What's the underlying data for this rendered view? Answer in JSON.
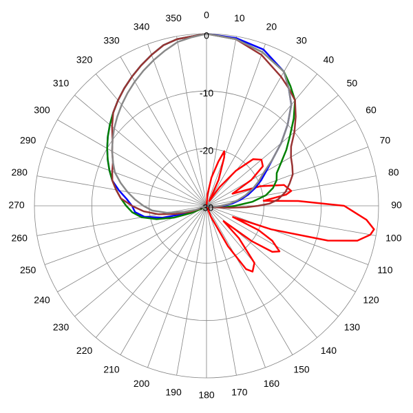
{
  "chart_data": {
    "type": "polar-line",
    "angle_direction": "clockwise",
    "angle_zero": "top",
    "angle_step_deg": 10,
    "angle_tick_labels": [
      "0",
      "10",
      "20",
      "30",
      "40",
      "50",
      "60",
      "70",
      "80",
      "90",
      "100",
      "110",
      "120",
      "130",
      "140",
      "150",
      "160",
      "170",
      "180",
      "190",
      "200",
      "210",
      "220",
      "230",
      "240",
      "250",
      "260",
      "270",
      "280",
      "290",
      "300",
      "310",
      "320",
      "330",
      "340",
      "350"
    ],
    "radial_range_db": [
      -30,
      0
    ],
    "radial_ticks": [
      0,
      -10,
      -20,
      -30
    ],
    "radial_tick_labels": [
      "0",
      "-10",
      "-20",
      "-30"
    ],
    "grid": true,
    "series": [
      {
        "color": "#ff0000",
        "points": [
          [
            0,
            -30
          ],
          [
            5,
            -28
          ],
          [
            10,
            -25
          ],
          [
            15,
            -22
          ],
          [
            18,
            -20
          ],
          [
            20,
            -21
          ],
          [
            25,
            -25
          ],
          [
            30,
            -29
          ],
          [
            35,
            -26
          ],
          [
            40,
            -22
          ],
          [
            45,
            -18.5
          ],
          [
            50,
            -17.5
          ],
          [
            55,
            -18
          ],
          [
            60,
            -21
          ],
          [
            65,
            -25
          ],
          [
            70,
            -20
          ],
          [
            75,
            -16
          ],
          [
            80,
            -15
          ],
          [
            82,
            -16
          ],
          [
            85,
            -20
          ],
          [
            87,
            -14
          ],
          [
            90,
            -6
          ],
          [
            95,
            -2
          ],
          [
            98,
            -0.5
          ],
          [
            100,
            -1
          ],
          [
            103,
            -3
          ],
          [
            106,
            -8
          ],
          [
            110,
            -18
          ],
          [
            113,
            -25
          ],
          [
            115,
            -20
          ],
          [
            118,
            -17
          ],
          [
            122,
            -15
          ],
          [
            125,
            -16
          ],
          [
            128,
            -20
          ],
          [
            132,
            -26
          ],
          [
            135,
            -22
          ],
          [
            140,
            -17
          ],
          [
            145,
            -16
          ],
          [
            148,
            -17
          ],
          [
            152,
            -22
          ],
          [
            158,
            -28
          ],
          [
            165,
            -30
          ],
          [
            180,
            -30
          ],
          [
            200,
            -30
          ],
          [
            220,
            -30
          ],
          [
            240,
            -30
          ],
          [
            260,
            -30
          ],
          [
            280,
            -30
          ],
          [
            300,
            -30
          ],
          [
            320,
            -30
          ],
          [
            340,
            -30
          ],
          [
            355,
            -30
          ],
          [
            360,
            -30
          ]
        ]
      },
      {
        "color": "#0000ff",
        "points": [
          [
            0,
            0
          ],
          [
            10,
            -0.3
          ],
          [
            20,
            -1
          ],
          [
            30,
            -3
          ],
          [
            35,
            -5
          ],
          [
            40,
            -7
          ],
          [
            45,
            -10
          ],
          [
            50,
            -13
          ],
          [
            55,
            -16
          ],
          [
            60,
            -18
          ],
          [
            65,
            -19.5
          ],
          [
            70,
            -21
          ],
          [
            75,
            -22.5
          ],
          [
            80,
            -24
          ],
          [
            85,
            -25.5
          ],
          [
            90,
            -27
          ],
          [
            95,
            -28
          ],
          [
            100,
            -29
          ],
          [
            110,
            -30
          ],
          [
            180,
            -30
          ],
          [
            240,
            -30
          ],
          [
            245,
            -29
          ],
          [
            250,
            -26
          ],
          [
            255,
            -22
          ],
          [
            260,
            -19
          ],
          [
            265,
            -17.5
          ],
          [
            270,
            -17
          ],
          [
            275,
            -16
          ],
          [
            280,
            -14.5
          ],
          [
            285,
            -13
          ],
          [
            290,
            -12
          ],
          [
            295,
            -11
          ],
          [
            300,
            -10
          ],
          [
            305,
            -9
          ],
          [
            310,
            -8
          ],
          [
            315,
            -7
          ],
          [
            320,
            -6
          ],
          [
            325,
            -5
          ],
          [
            330,
            -4
          ],
          [
            335,
            -3
          ],
          [
            340,
            -2
          ],
          [
            345,
            -1
          ],
          [
            350,
            -0.5
          ],
          [
            360,
            0
          ]
        ]
      },
      {
        "color": "#008000",
        "points": [
          [
            0,
            0
          ],
          [
            10,
            -0.5
          ],
          [
            20,
            -1.5
          ],
          [
            30,
            -3
          ],
          [
            35,
            -4.5
          ],
          [
            40,
            -6
          ],
          [
            45,
            -8.5
          ],
          [
            50,
            -11
          ],
          [
            55,
            -13
          ],
          [
            60,
            -15
          ],
          [
            65,
            -16.5
          ],
          [
            70,
            -17
          ],
          [
            75,
            -18
          ],
          [
            80,
            -19.5
          ],
          [
            85,
            -22
          ],
          [
            90,
            -25
          ],
          [
            95,
            -27
          ],
          [
            100,
            -28.5
          ],
          [
            105,
            -30
          ],
          [
            180,
            -30
          ],
          [
            235,
            -30
          ],
          [
            240,
            -29
          ],
          [
            245,
            -27
          ],
          [
            250,
            -24
          ],
          [
            255,
            -21
          ],
          [
            260,
            -18.5
          ],
          [
            265,
            -17
          ],
          [
            270,
            -16
          ],
          [
            275,
            -15
          ],
          [
            280,
            -14
          ],
          [
            285,
            -13
          ],
          [
            290,
            -12
          ],
          [
            295,
            -11
          ],
          [
            300,
            -10
          ],
          [
            305,
            -9
          ],
          [
            310,
            -8
          ],
          [
            315,
            -7
          ],
          [
            320,
            -6
          ],
          [
            325,
            -5
          ],
          [
            330,
            -4
          ],
          [
            335,
            -3
          ],
          [
            340,
            -2
          ],
          [
            345,
            -1
          ],
          [
            350,
            -0.5
          ],
          [
            360,
            0
          ]
        ]
      },
      {
        "color": "#993333",
        "points": [
          [
            0,
            0
          ],
          [
            10,
            -0.5
          ],
          [
            20,
            -2
          ],
          [
            30,
            -4
          ],
          [
            35,
            -5
          ],
          [
            40,
            -6
          ],
          [
            45,
            -8
          ],
          [
            50,
            -10
          ],
          [
            55,
            -12
          ],
          [
            60,
            -13
          ],
          [
            65,
            -13.5
          ],
          [
            70,
            -14
          ],
          [
            75,
            -15
          ],
          [
            80,
            -16
          ],
          [
            85,
            -17.5
          ],
          [
            88,
            -19
          ],
          [
            90,
            -21
          ],
          [
            92,
            -23
          ],
          [
            95,
            -26
          ],
          [
            100,
            -28.5
          ],
          [
            105,
            -30
          ],
          [
            180,
            -30
          ],
          [
            240,
            -30
          ],
          [
            245,
            -29
          ],
          [
            250,
            -27
          ],
          [
            255,
            -24.5
          ],
          [
            260,
            -21.5
          ],
          [
            265,
            -19
          ],
          [
            270,
            -17
          ],
          [
            275,
            -15
          ],
          [
            280,
            -14
          ],
          [
            285,
            -13
          ],
          [
            290,
            -12.5
          ],
          [
            295,
            -12
          ],
          [
            300,
            -11
          ],
          [
            305,
            -10
          ],
          [
            310,
            -8.5
          ],
          [
            315,
            -7
          ],
          [
            320,
            -6
          ],
          [
            325,
            -5
          ],
          [
            330,
            -4
          ],
          [
            335,
            -3
          ],
          [
            340,
            -2
          ],
          [
            345,
            -1
          ],
          [
            350,
            -0.5
          ],
          [
            360,
            0
          ]
        ]
      },
      {
        "color": "#888888",
        "points": [
          [
            0,
            0
          ],
          [
            10,
            -0.5
          ],
          [
            20,
            -1.5
          ],
          [
            30,
            -3
          ],
          [
            35,
            -5
          ],
          [
            40,
            -7
          ],
          [
            45,
            -10
          ],
          [
            50,
            -13
          ],
          [
            55,
            -16
          ],
          [
            60,
            -18.5
          ],
          [
            65,
            -20
          ],
          [
            70,
            -21.5
          ],
          [
            75,
            -23
          ],
          [
            80,
            -24.5
          ],
          [
            85,
            -26
          ],
          [
            90,
            -27.5
          ],
          [
            95,
            -28.5
          ],
          [
            100,
            -29.5
          ],
          [
            105,
            -30
          ],
          [
            180,
            -30
          ],
          [
            240,
            -30
          ],
          [
            245,
            -29.5
          ],
          [
            250,
            -28
          ],
          [
            255,
            -26
          ],
          [
            260,
            -23
          ],
          [
            265,
            -20.5
          ],
          [
            270,
            -19
          ],
          [
            275,
            -17.5
          ],
          [
            280,
            -16
          ],
          [
            285,
            -14.5
          ],
          [
            290,
            -13
          ],
          [
            295,
            -12
          ],
          [
            300,
            -11
          ],
          [
            305,
            -10
          ],
          [
            310,
            -9
          ],
          [
            315,
            -8
          ],
          [
            320,
            -7
          ],
          [
            325,
            -6
          ],
          [
            330,
            -5
          ],
          [
            335,
            -4
          ],
          [
            340,
            -3
          ],
          [
            345,
            -2
          ],
          [
            350,
            -1
          ],
          [
            355,
            -0.5
          ],
          [
            360,
            0
          ]
        ]
      }
    ]
  }
}
